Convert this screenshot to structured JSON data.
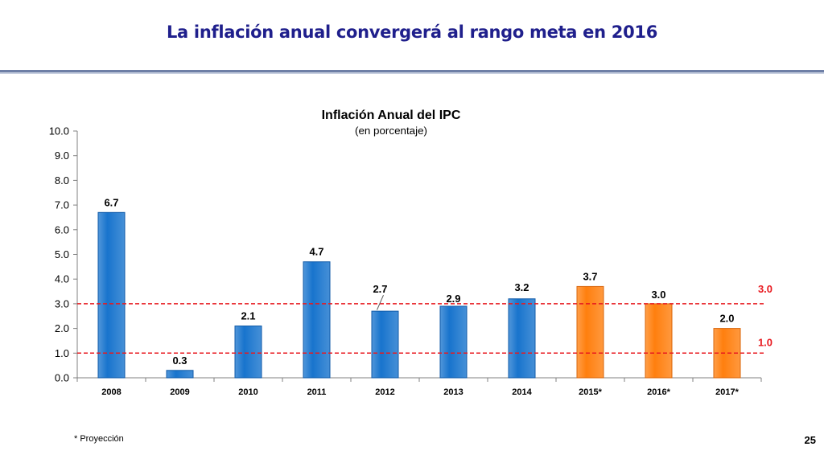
{
  "slide": {
    "title": "La inflación anual convergerá al rango meta en 2016",
    "footnote": "* Proyección",
    "page_number": "25"
  },
  "colors": {
    "actual_bar": "#1874cd",
    "projected_bar": "#ff7f0e",
    "target_line": "#e8191f",
    "title": "#1f1f8c"
  },
  "chart_data": {
    "type": "bar",
    "title": "Inflación Anual del IPC",
    "subtitle": "(en porcentaje)",
    "xlabel": "",
    "ylabel": "",
    "ylim": [
      0,
      10
    ],
    "yticks": [
      "0.0",
      "1.0",
      "2.0",
      "3.0",
      "4.0",
      "5.0",
      "6.0",
      "7.0",
      "8.0",
      "9.0",
      "10.0"
    ],
    "categories": [
      "2008",
      "2009",
      "2010",
      "2011",
      "2012",
      "2013",
      "2014",
      "2015*",
      "2016*",
      "2017*"
    ],
    "values": [
      6.7,
      0.3,
      2.1,
      4.7,
      2.7,
      2.9,
      3.2,
      3.7,
      3.0,
      2.0
    ],
    "value_labels": [
      "6.7",
      "0.3",
      "2.1",
      "4.7",
      "2.7",
      "2.9",
      "3.2",
      "3.7",
      "3.0",
      "2.0"
    ],
    "projected": [
      false,
      false,
      false,
      false,
      false,
      false,
      false,
      true,
      true,
      true
    ],
    "grid": false,
    "target_range": {
      "upper": 3.0,
      "lower": 1.0,
      "upper_label": "3.0",
      "lower_label": "1.0"
    }
  }
}
